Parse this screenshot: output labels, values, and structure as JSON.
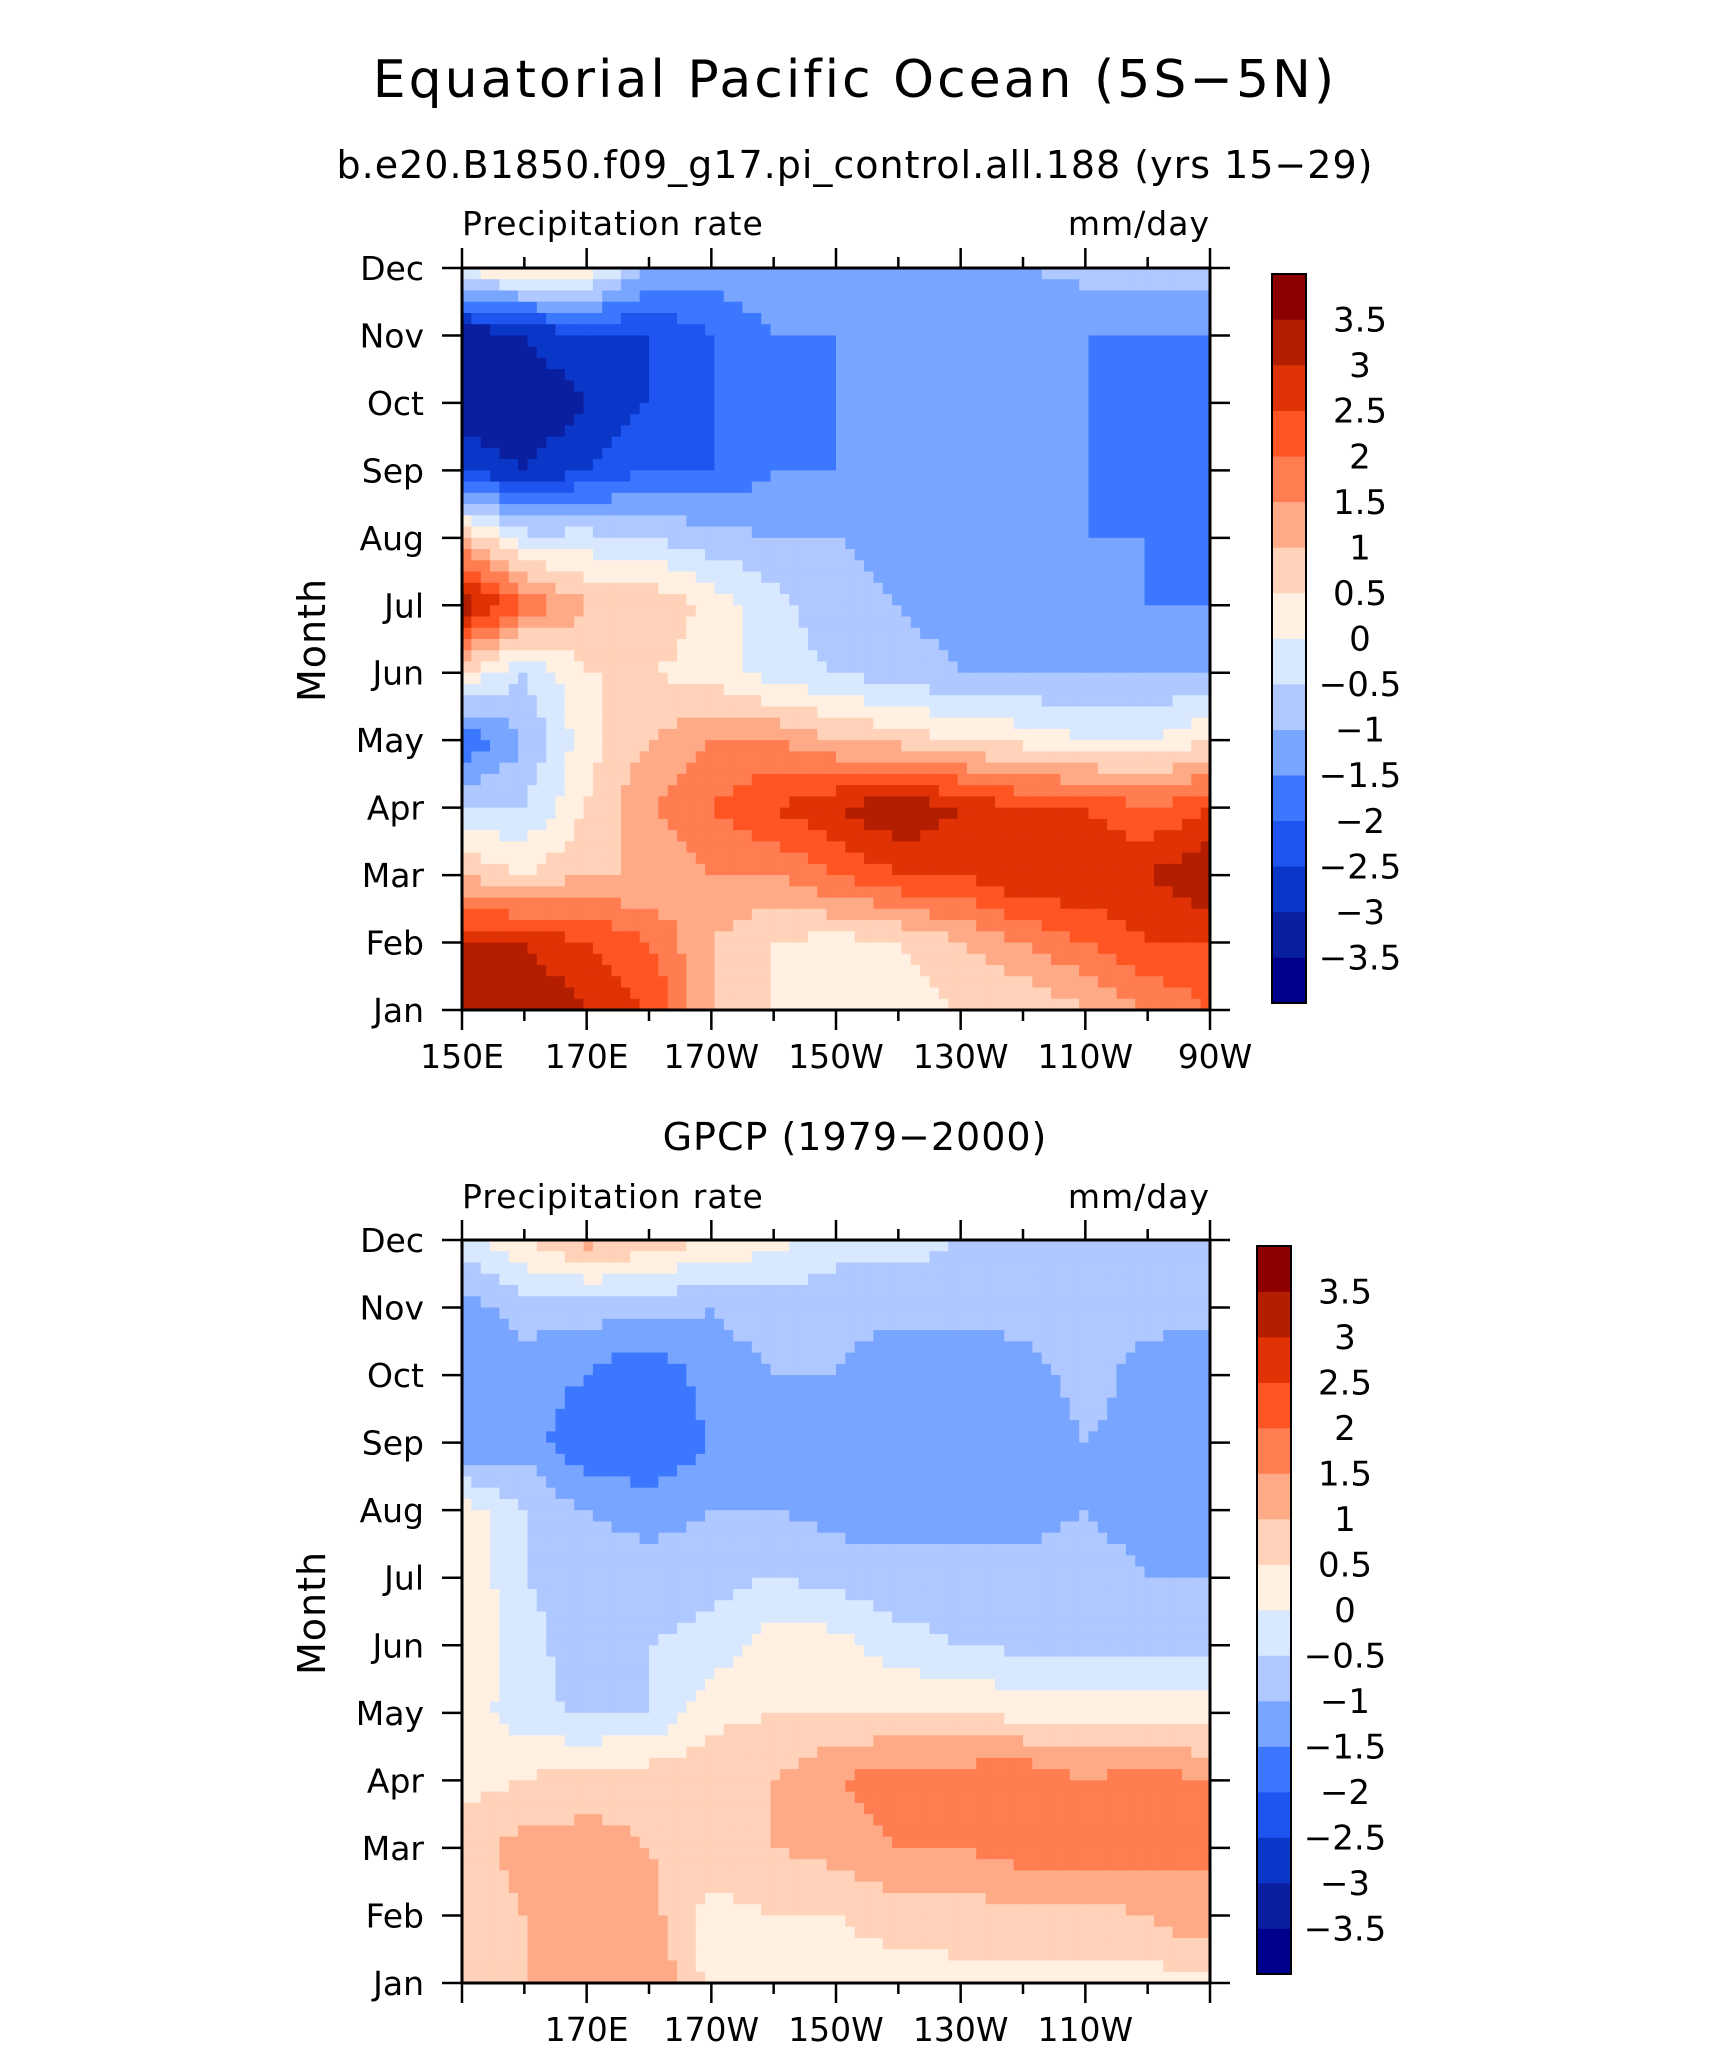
{
  "figure": {
    "title": "Equatorial Pacific Ocean (5S−5N)",
    "colors": [
      "#00008c",
      "#0a1ea0",
      "#0a37c8",
      "#1e55f0",
      "#3c78ff",
      "#78a5ff",
      "#afc8ff",
      "#d7e8ff",
      "#fff0e1",
      "#ffd2b9",
      "#ffaa87",
      "#ff7d50",
      "#ff5523",
      "#e13205",
      "#b41e00",
      "#8c0000"
    ],
    "levels": [
      "3.5",
      "3",
      "2.5",
      "2",
      "1.5",
      "1",
      "0.5",
      "0",
      "−0.5",
      "−1",
      "−1.5",
      "−2",
      "−2.5",
      "−3",
      "−3.5"
    ]
  },
  "chart_data": [
    {
      "type": "heatmap",
      "subtitle": "b.e20.B1850.f09_g17.pi_control.all.188 (yrs 15−29)",
      "left_label": "Precipitation rate",
      "right_label": "mm/day",
      "ylabel": "Month",
      "x_ticks": [
        "150E",
        "170E",
        "170W",
        "150W",
        "130W",
        "110W",
        "90W"
      ],
      "y_ticks": [
        "Jan",
        "Feb",
        "Mar",
        "Apr",
        "May",
        "Jun",
        "Jul",
        "Aug",
        "Sep",
        "Oct",
        "Nov",
        "Dec"
      ],
      "xlim": [
        150,
        270
      ],
      "ylim": [
        "Jan",
        "Dec"
      ],
      "value_range": [
        -4,
        4
      ],
      "x_grid": [
        150,
        160,
        170,
        180,
        190,
        200,
        210,
        220,
        230,
        240,
        250,
        260,
        270
      ],
      "values": [
        [
          3.0,
          3.5,
          3.0,
          2.5,
          1.0,
          0.5,
          0.2,
          0.2,
          0.5,
          0.5,
          1.0,
          1.5,
          2.0
        ],
        [
          3.0,
          3.0,
          2.5,
          2.0,
          1.0,
          0.5,
          0.3,
          0.5,
          1.0,
          1.5,
          2.0,
          2.5,
          2.5
        ],
        [
          1.0,
          0.5,
          1.0,
          1.0,
          1.5,
          1.5,
          2.0,
          2.5,
          2.5,
          3.0,
          3.0,
          3.0,
          3.5
        ],
        [
          -0.5,
          -0.5,
          0.5,
          1.5,
          2.0,
          2.5,
          3.0,
          3.5,
          3.0,
          2.5,
          2.5,
          2.0,
          2.5
        ],
        [
          -2.0,
          -1.0,
          0.3,
          1.0,
          1.5,
          1.5,
          1.0,
          0.8,
          0.5,
          0.3,
          0.0,
          0.0,
          0.5
        ],
        [
          0.5,
          -0.5,
          0.5,
          0.5,
          0.3,
          -0.3,
          -0.5,
          -0.8,
          -1.0,
          -1.0,
          -1.0,
          -1.0,
          -1.0
        ],
        [
          3.5,
          2.0,
          1.0,
          1.0,
          0.3,
          -0.3,
          -0.8,
          -1.0,
          -1.2,
          -1.5,
          -1.5,
          -1.5,
          -1.5
        ],
        [
          1.0,
          -0.3,
          -0.3,
          -0.5,
          -0.8,
          -1.0,
          -1.0,
          -1.2,
          -1.5,
          -1.5,
          -1.5,
          -1.5,
          -2.0
        ],
        [
          -2.5,
          -3.0,
          -2.5,
          -2.0,
          -2.0,
          -1.5,
          -1.5,
          -1.5,
          -1.5,
          -1.5,
          -1.5,
          -2.0,
          -2.0
        ],
        [
          -3.5,
          -3.5,
          -3.0,
          -2.5,
          -2.0,
          -2.0,
          -1.5,
          -1.5,
          -1.5,
          -1.5,
          -1.5,
          -2.0,
          -2.0
        ],
        [
          -3.5,
          -3.0,
          -2.5,
          -2.5,
          -2.0,
          -1.5,
          -1.5,
          -1.5,
          -1.5,
          -1.5,
          -1.5,
          -1.5,
          -1.5
        ],
        [
          0.2,
          0.5,
          0.3,
          -1.0,
          -1.2,
          -1.2,
          -1.5,
          -1.5,
          -1.0,
          -1.0,
          -0.8,
          -0.8,
          -0.8
        ]
      ]
    },
    {
      "type": "heatmap",
      "subtitle": "GPCP (1979−2000)",
      "left_label": "Precipitation rate",
      "right_label": "mm/day",
      "ylabel": "Month",
      "x_ticks": [
        "170E",
        "170W",
        "150W",
        "130W",
        "110W"
      ],
      "y_ticks": [
        "Jan",
        "Feb",
        "Mar",
        "Apr",
        "May",
        "Jun",
        "Jul",
        "Aug",
        "Sep",
        "Oct",
        "Nov",
        "Dec"
      ],
      "xlim": [
        150,
        270
      ],
      "ylim": [
        "Jan",
        "Dec"
      ],
      "value_range": [
        -4,
        4
      ],
      "x_grid": [
        150,
        160,
        170,
        180,
        190,
        200,
        210,
        220,
        230,
        240,
        250,
        260,
        270
      ],
      "values": [
        [
          1.0,
          1.0,
          1.2,
          1.5,
          0.3,
          0.2,
          0.2,
          0.2,
          0.3,
          0.3,
          0.3,
          0.3,
          0.3
        ],
        [
          0.5,
          1.0,
          1.2,
          1.2,
          0.3,
          0.5,
          0.5,
          0.8,
          0.8,
          0.8,
          0.8,
          1.0,
          1.5
        ],
        [
          0.8,
          1.2,
          1.2,
          1.0,
          0.8,
          1.0,
          1.2,
          1.5,
          1.5,
          1.8,
          1.8,
          1.8,
          1.5
        ],
        [
          0.3,
          0.5,
          0.8,
          0.8,
          1.0,
          1.0,
          1.5,
          1.8,
          1.8,
          2.0,
          1.5,
          1.8,
          1.5
        ],
        [
          0.3,
          -0.3,
          -0.6,
          -0.5,
          0.3,
          0.5,
          0.5,
          0.5,
          0.5,
          0.3,
          0.3,
          0.2,
          0.2
        ],
        [
          0.5,
          -0.3,
          -0.8,
          -0.5,
          -0.3,
          0.3,
          0.2,
          -0.3,
          -0.5,
          -0.6,
          -0.6,
          -0.6,
          -0.6
        ],
        [
          0.5,
          -0.5,
          -0.7,
          -0.8,
          -0.7,
          -0.5,
          -0.7,
          -0.8,
          -0.8,
          -0.8,
          -0.8,
          -1.0,
          -1.0
        ],
        [
          0.3,
          -0.5,
          -1.0,
          -1.2,
          -1.0,
          -1.0,
          -1.2,
          -1.2,
          -1.2,
          -1.2,
          -1.0,
          -1.2,
          -1.2
        ],
        [
          -1.5,
          -1.2,
          -2.0,
          -2.0,
          -1.5,
          -1.0,
          -1.5,
          -1.5,
          -1.5,
          -1.5,
          -1.0,
          -1.2,
          -1.5
        ],
        [
          -1.5,
          -1.2,
          -1.5,
          -2.0,
          -1.2,
          -1.0,
          -1.0,
          -1.5,
          -1.5,
          -1.2,
          -0.8,
          -1.2,
          -1.5
        ],
        [
          -1.2,
          -0.8,
          -0.8,
          -0.8,
          -1.0,
          -0.8,
          -0.8,
          -0.8,
          -0.8,
          -0.8,
          -0.8,
          -0.8,
          -0.8
        ],
        [
          -0.3,
          0.5,
          1.2,
          0.8,
          0.5,
          0.2,
          -0.3,
          -0.3,
          -0.5,
          -0.5,
          -0.5,
          -0.5,
          -0.5
        ]
      ]
    }
  ]
}
